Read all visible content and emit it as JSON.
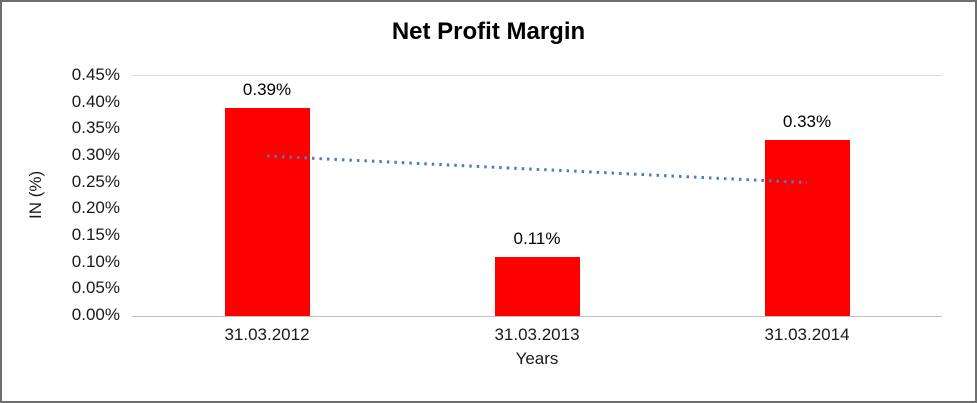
{
  "chart_data": {
    "type": "bar",
    "title": "Net Profit Margin",
    "categories": [
      "31.03.2012",
      "31.03.2013",
      "31.03.2014"
    ],
    "values": [
      0.39,
      0.11,
      0.33
    ],
    "value_labels": [
      "0.39%",
      "0.11%",
      "0.33%"
    ],
    "xlabel": "Years",
    "ylabel": "IN (%)",
    "ylim": [
      0,
      0.45
    ],
    "y_tick_step": 0.05,
    "y_tick_labels": [
      "0.00%",
      "0.05%",
      "0.10%",
      "0.15%",
      "0.20%",
      "0.25%",
      "0.30%",
      "0.35%",
      "0.40%",
      "0.45%"
    ],
    "bar_color": "#ff0000",
    "grid": false,
    "legend": false,
    "trendline": {
      "style": "dotted",
      "color": "#4a7ebb",
      "start_value": 0.3,
      "end_value": 0.25
    }
  }
}
